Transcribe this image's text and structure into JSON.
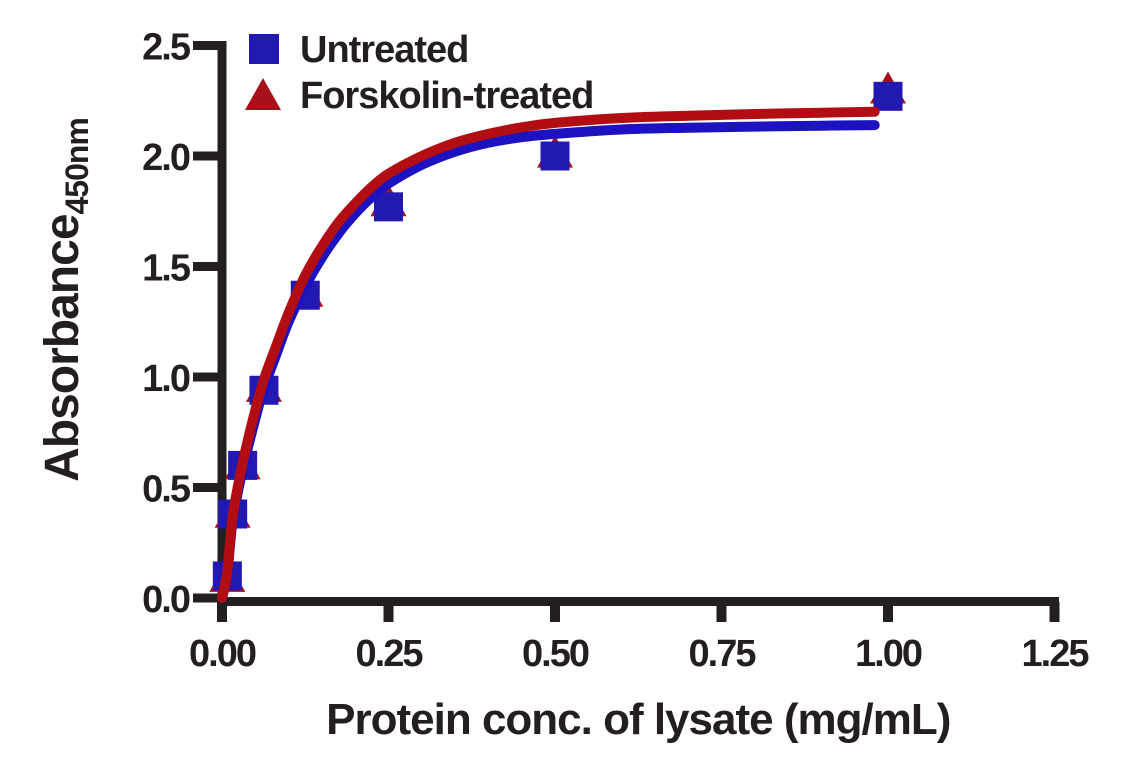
{
  "figure": {
    "background": "#ffffff",
    "text_color": "#231f20",
    "axis_color": "#231f20"
  },
  "chart_data": {
    "type": "scatter",
    "title": "",
    "xlabel": "Protein conc. of lysate (mg/mL)",
    "ylabel": "Absorbance",
    "ylabel_subscript": "450nm",
    "xlim": [
      0,
      1.25
    ],
    "ylim": [
      0,
      2.5
    ],
    "grid": false,
    "x_tick_labels": [
      "0.00",
      "0.25",
      "0.50",
      "0.75",
      "1.00",
      "1.25"
    ],
    "x_tick_values": [
      0,
      0.25,
      0.5,
      0.75,
      1.0,
      1.25
    ],
    "y_tick_labels": [
      "0.0",
      "0.5",
      "1.0",
      "1.5",
      "2.0",
      "2.5"
    ],
    "y_tick_values": [
      0,
      0.5,
      1.0,
      1.5,
      2.0,
      2.5
    ],
    "legend": {
      "position": "top-left-inside",
      "entries": [
        {
          "label": "Untreated",
          "marker": "square",
          "color": "#2119b2"
        },
        {
          "label": "Forskolin-treated",
          "marker": "triangle",
          "color": "#a8111b"
        }
      ]
    },
    "series": [
      {
        "name": "Untreated",
        "marker": "square",
        "marker_color": "#2119b2",
        "line_color": "#1c12c0",
        "points": {
          "x": [
            0.008,
            0.016,
            0.031,
            0.063,
            0.125,
            0.25,
            0.5,
            1.0
          ],
          "y": [
            0.1,
            0.38,
            0.6,
            0.94,
            1.37,
            1.77,
            2.0,
            2.27
          ]
        },
        "fit_curve": {
          "x": [
            0,
            0.008,
            0.016,
            0.031,
            0.05,
            0.063,
            0.08,
            0.1,
            0.125,
            0.15,
            0.175,
            0.2,
            0.225,
            0.25,
            0.3,
            0.35,
            0.4,
            0.45,
            0.5,
            0.6,
            0.7,
            0.8,
            0.9,
            0.98
          ],
          "y": [
            0.0,
            0.11,
            0.35,
            0.58,
            0.81,
            0.95,
            1.09,
            1.25,
            1.41,
            1.54,
            1.65,
            1.74,
            1.815,
            1.875,
            1.96,
            2.02,
            2.06,
            2.085,
            2.1,
            2.12,
            2.128,
            2.133,
            2.137,
            2.14
          ]
        }
      },
      {
        "name": "Forskolin-treated",
        "marker": "triangle",
        "marker_color": "#a8111b",
        "line_color": "#b10d12",
        "points": {
          "x": [
            0.008,
            0.016,
            0.031,
            0.063,
            0.125,
            0.25,
            0.5,
            1.0
          ],
          "y": [
            0.1,
            0.39,
            0.61,
            0.96,
            1.39,
            1.8,
            2.02,
            2.31
          ]
        },
        "fit_curve": {
          "x": [
            0,
            0.008,
            0.016,
            0.031,
            0.05,
            0.063,
            0.08,
            0.1,
            0.125,
            0.15,
            0.175,
            0.2,
            0.225,
            0.25,
            0.3,
            0.35,
            0.4,
            0.45,
            0.5,
            0.6,
            0.7,
            0.8,
            0.9,
            0.98
          ],
          "y": [
            0.0,
            0.12,
            0.37,
            0.61,
            0.85,
            0.99,
            1.13,
            1.29,
            1.46,
            1.59,
            1.7,
            1.785,
            1.86,
            1.92,
            2.0,
            2.06,
            2.1,
            2.13,
            2.15,
            2.172,
            2.182,
            2.19,
            2.196,
            2.2
          ]
        }
      }
    ]
  }
}
